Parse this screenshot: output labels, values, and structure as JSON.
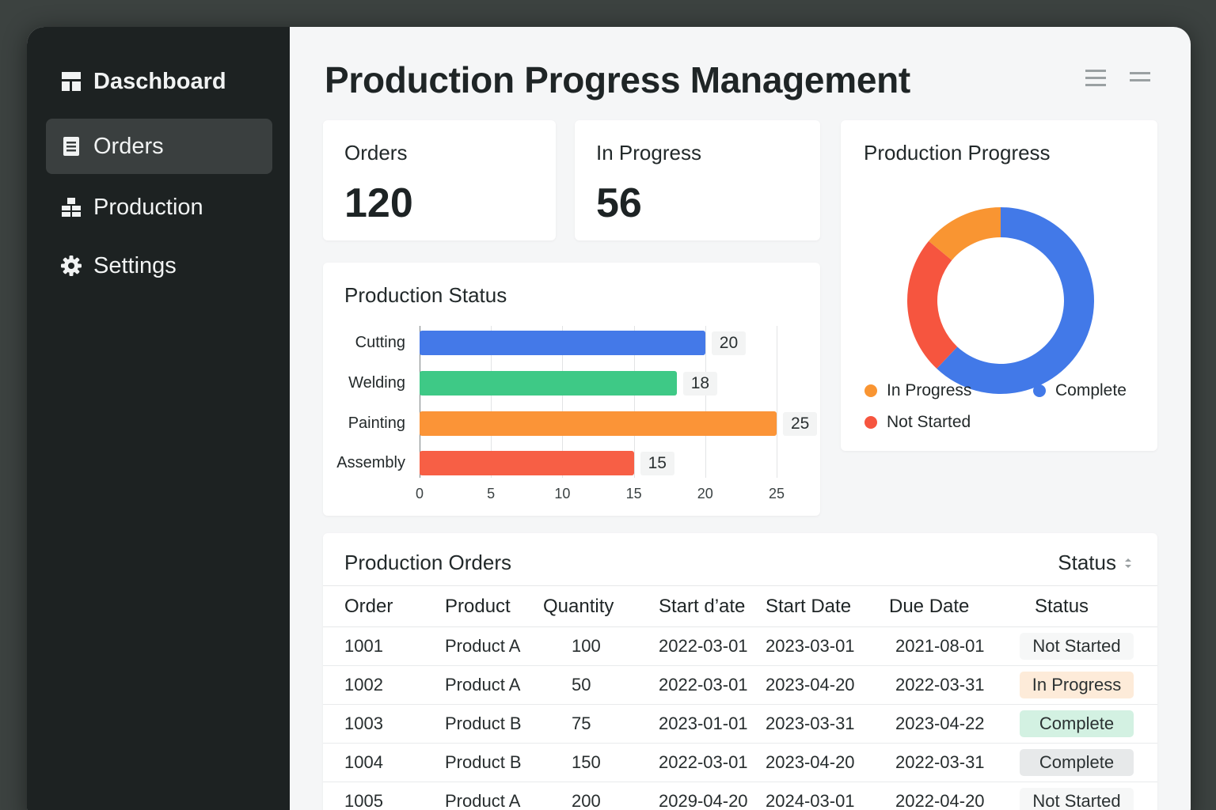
{
  "sidebar": {
    "items": [
      {
        "label": "Daschboard",
        "icon": "dashboard-icon"
      },
      {
        "label": "Orders",
        "icon": "orders-icon",
        "active": true
      },
      {
        "label": "Production",
        "icon": "production-icon"
      },
      {
        "label": "Settings",
        "icon": "gear-icon"
      }
    ]
  },
  "header": {
    "title": "Production Progress Management",
    "icons": [
      "list-icon",
      "menu-icon"
    ]
  },
  "stats": {
    "orders": {
      "label": "Orders",
      "value": "120"
    },
    "in_progress": {
      "label": "In Progress",
      "value": "56"
    }
  },
  "status_chart": {
    "title": "Production Status",
    "chart_data": {
      "type": "bar",
      "orientation": "horizontal",
      "categories": [
        "Cutting",
        "Welding",
        "Painting",
        "Assembly"
      ],
      "values": [
        20,
        18,
        25,
        15
      ],
      "value_labels": [
        "20",
        "18",
        "25",
        "15"
      ],
      "colors": [
        "#4479e8",
        "#3ec986",
        "#fb9437",
        "#f75f45"
      ],
      "xlim": [
        0,
        25
      ],
      "xticks": [
        "0",
        "5",
        "10",
        "15",
        "20",
        "25"
      ],
      "grid": true
    }
  },
  "progress_chart": {
    "title": "Production Progress",
    "chart_data": {
      "type": "pie",
      "donut": true,
      "slices": [
        {
          "name": "Complete",
          "value": 62,
          "color": "#4279e8"
        },
        {
          "name": "Not Started",
          "value": 24,
          "color": "#f6553f"
        },
        {
          "name": "In Progress",
          "value": 14,
          "color": "#f99532"
        }
      ],
      "legend": [
        "In Progress",
        "Complete",
        "Not Started"
      ],
      "legend_position": "bottom"
    }
  },
  "orders_table": {
    "title": "Production Orders",
    "filter_label": "Status",
    "columns": [
      "Order",
      "Product",
      "Quantity",
      "Start d’ate",
      "Start Date",
      "Due Date",
      "Status"
    ],
    "rows": [
      {
        "order": "1001",
        "product": "Product A",
        "quantity": "100",
        "start1": "2022-03-01",
        "start2": "2023-03-01",
        "due": "2021-08-01",
        "status": "Not Started",
        "badge_color": "#f6f7f7"
      },
      {
        "order": "1002",
        "product": "Product A",
        "quantity": "50",
        "start1": "2022-03-01",
        "start2": "2023-04-20",
        "due": "2022-03-31",
        "status": "In Progress",
        "badge_color": "#fdebd9"
      },
      {
        "order": "1003",
        "product": "Product B",
        "quantity": "75",
        "start1": "2023-01-01",
        "start2": "2023-03-31",
        "due": "2023-04-22",
        "status": "Complete",
        "badge_color": "#d3f1e2"
      },
      {
        "order": "1004",
        "product": "Product B",
        "quantity": "150",
        "start1": "2022-03-01",
        "start2": "2023-04-20",
        "due": "2022-03-31",
        "status": "Complete",
        "badge_color": "#e7e9ea"
      },
      {
        "order": "1005",
        "product": "Product A",
        "quantity": "200",
        "start1": "2029-04-20",
        "start2": "2024-03-01",
        "due": "2022-04-20",
        "status": "Not Started",
        "badge_color": "#f6f7f7"
      }
    ]
  }
}
